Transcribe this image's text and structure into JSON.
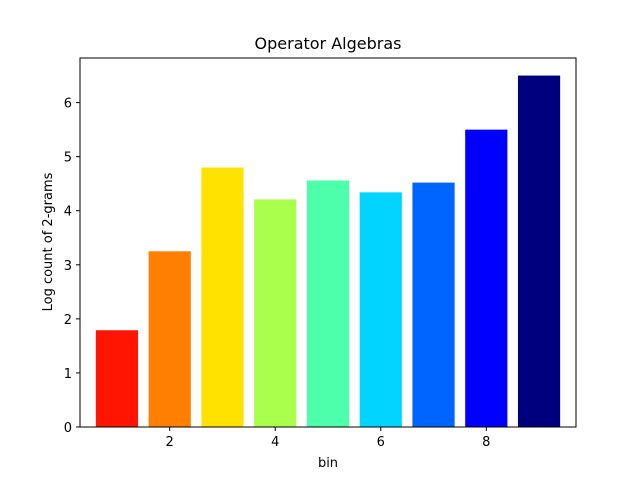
{
  "chart_data": {
    "type": "bar",
    "title": "Operator Algebras",
    "xlabel": "bin",
    "ylabel": "Log count of 2-grams",
    "x": [
      1,
      2,
      3,
      4,
      5,
      6,
      7,
      8,
      9
    ],
    "values": [
      1.79,
      3.25,
      4.8,
      4.21,
      4.56,
      4.34,
      4.52,
      5.5,
      6.5
    ],
    "colors": [
      "#ff1500",
      "#ff7f00",
      "#ffe200",
      "#aaff4d",
      "#4dffaa",
      "#00d4ff",
      "#0064ff",
      "#0000ff",
      "#00007f"
    ],
    "xlim": [
      0.3,
      9.7
    ],
    "ylim": [
      0,
      6.825
    ],
    "xticks": [
      2,
      4,
      6,
      8
    ],
    "yticks": [
      0,
      1,
      2,
      3,
      4,
      5,
      6
    ],
    "bar_width": 0.8,
    "grid": false,
    "legend": false
  }
}
